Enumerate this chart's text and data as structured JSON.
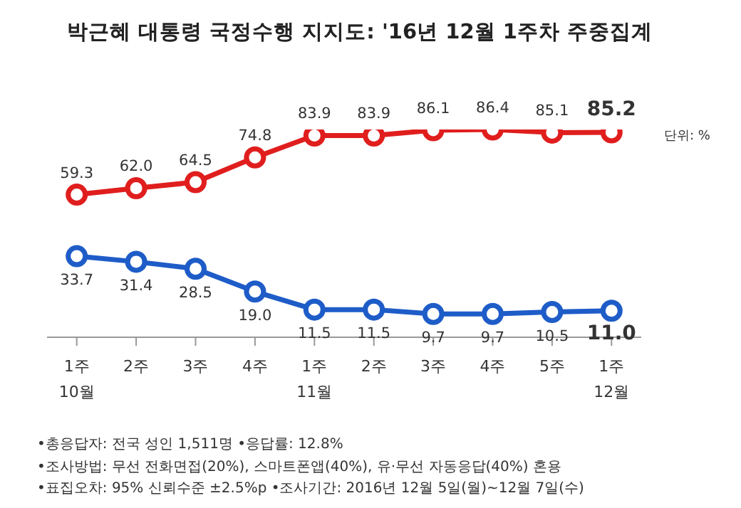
{
  "chart_data": {
    "type": "line",
    "title": "박근혜 대통령 국정수행 지지도: '16년 12월 1주차 주중집계",
    "categories": [
      "1주\n10월",
      "2주",
      "3주",
      "4주",
      "1주\n11월",
      "2주",
      "3주",
      "4주",
      "5주",
      "1주\n12월"
    ],
    "series": [
      {
        "color": "#e01e1e",
        "values": [
          59.3,
          62.0,
          64.5,
          74.8,
          83.9,
          83.9,
          86.1,
          86.4,
          85.1,
          85.2
        ],
        "value_labels": [
          "59.3",
          "62.0",
          "64.5",
          "74.8",
          "83.9",
          "83.9",
          "86.1",
          "86.4",
          "85.1",
          "85.2"
        ]
      },
      {
        "color": "#1e5cc8",
        "values": [
          33.7,
          31.4,
          28.5,
          19.0,
          11.5,
          11.5,
          9.7,
          9.7,
          10.5,
          11.0
        ],
        "value_labels": [
          "33.7",
          "31.4",
          "28.5",
          "19.0",
          "11.5",
          "11.5",
          "9.7",
          "9.7",
          "10.5",
          "11.0"
        ]
      }
    ],
    "tick_labels": "x",
    "marker": "circle",
    "line_style": "solid",
    "grid": false,
    "legend": false,
    "annotations": [
      "단위: %",
      "•총응답자: 전국 성인 1,511명 •응답률: 12.8%",
      "•조사방법: 무선 전화면접(20%), 스마트폰앱(40%), 유·무선 자동응답(40%) 혼용",
      "•표집오차: 95% 신뢰수준 ±2.5%p •조사기간: 2016년 12월 5일(월)~12월 7일(수)"
    ]
  }
}
